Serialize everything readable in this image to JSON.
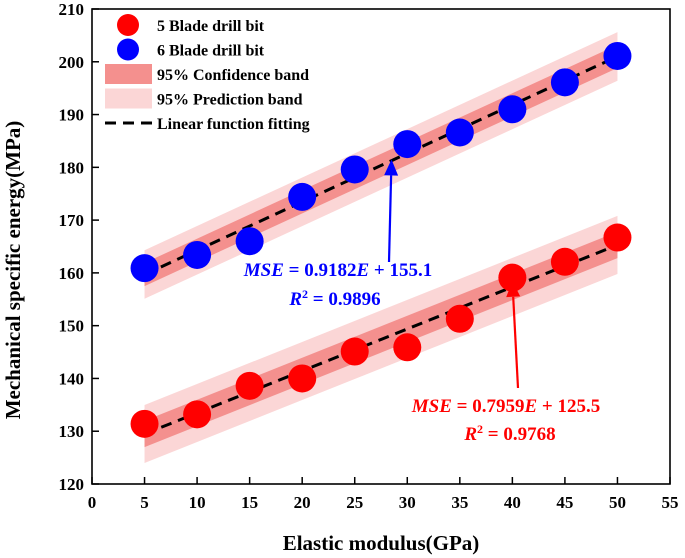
{
  "chart_data": {
    "type": "scatter",
    "xlabel": "Elastic modulus(GPa)",
    "ylabel": "Mechanical specific energy(MPa)",
    "xlim": [
      0,
      55
    ],
    "ylim": [
      120,
      210
    ],
    "xticks": [
      0,
      5,
      10,
      15,
      20,
      25,
      30,
      35,
      40,
      45,
      50,
      55
    ],
    "yticks": [
      120,
      130,
      140,
      150,
      160,
      170,
      180,
      190,
      200,
      210
    ],
    "legend_position": "top-left",
    "legend": [
      {
        "key": "red_marker",
        "label": "5 Blade drill bit"
      },
      {
        "key": "blue_marker",
        "label": "6 Blade drill bit"
      },
      {
        "key": "confidence",
        "label": "95% Confidence band"
      },
      {
        "key": "prediction",
        "label": "95% Prediction band"
      },
      {
        "key": "fit",
        "label": "Linear function fitting"
      }
    ],
    "series": [
      {
        "name": "5 Blade drill bit",
        "color": "#ff0000",
        "x": [
          5,
          10,
          15,
          20,
          25,
          30,
          35,
          40,
          45,
          50
        ],
        "y": [
          131.4,
          133.2,
          138.6,
          140.0,
          145.1,
          145.9,
          151.3,
          159.1,
          162.1,
          166.7
        ],
        "fit": {
          "slope": 0.7959,
          "intercept": 125.5,
          "x_range": [
            5,
            50
          ]
        },
        "confidence_halfwidth": 2.5,
        "prediction_halfwidth": 5.5,
        "equation": {
          "lhs": "MSE",
          "mid": " = 0.7959",
          "var": "E",
          "rhs": " + 125.5",
          "r2_label": "R",
          "r2_sup": "2",
          "r2_value": " = 0.9768"
        },
        "annotation_target": [
          40,
          158.5
        ]
      },
      {
        "name": "6 Blade drill bit",
        "color": "#0000ff",
        "x": [
          5,
          10,
          15,
          20,
          25,
          30,
          35,
          40,
          45,
          50
        ],
        "y": [
          160.9,
          163.4,
          166.0,
          174.4,
          179.6,
          184.4,
          186.6,
          191.0,
          196.1,
          201.1
        ],
        "fit": {
          "slope": 0.9182,
          "intercept": 155.1,
          "x_range": [
            5,
            50
          ]
        },
        "confidence_halfwidth": 2.2,
        "prediction_halfwidth": 4.6,
        "equation": {
          "lhs": "MSE",
          "mid": " = 0.9182",
          "var": "E",
          "rhs": " + 155.1",
          "r2_label": "R",
          "r2_sup": "2",
          "r2_value": " = 0.9896"
        },
        "annotation_target": [
          28.5,
          181.5
        ]
      }
    ],
    "colors": {
      "confidence": "#f4908e",
      "prediction": "#fbd6d6",
      "fit_line": "#000000",
      "red_marker": "#ff0000",
      "blue_marker": "#0000ff",
      "blue_text": "#0000ff",
      "red_text": "#ff0000"
    }
  }
}
